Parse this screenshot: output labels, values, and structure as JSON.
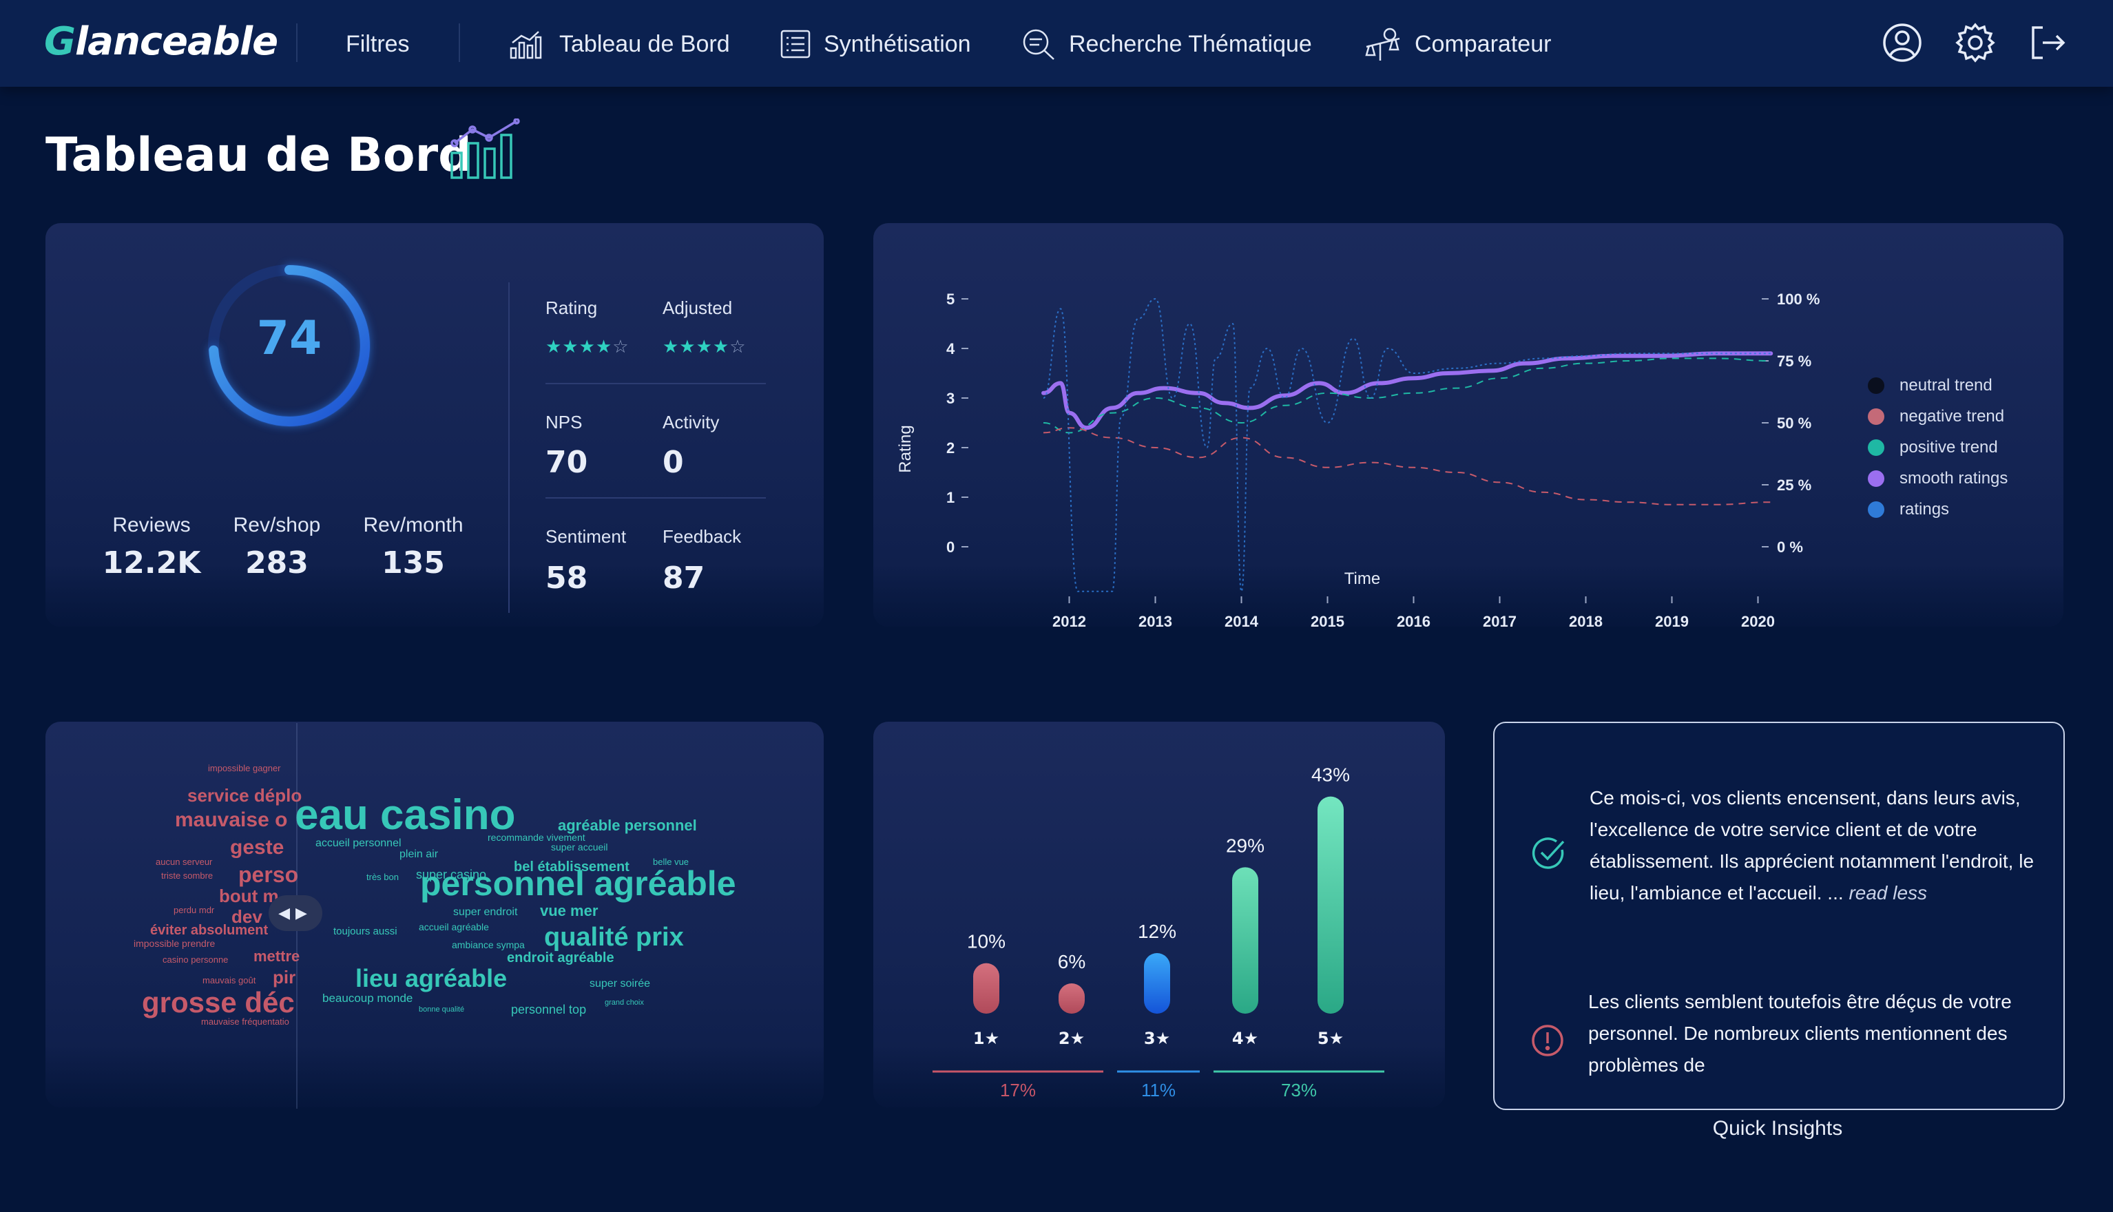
{
  "app": {
    "logo": "Glanceable",
    "nav": {
      "filters": "Filtres",
      "dashboard": "Tableau de Bord",
      "synthesis": "Synthétisation",
      "thematic": "Recherche Thématique",
      "comparator": "Comparateur"
    }
  },
  "page": {
    "title": "Tableau de Bord"
  },
  "kpis": {
    "score": "74",
    "reviews": {
      "label": "Reviews",
      "value": "12.2K"
    },
    "rev_shop": {
      "label": "Rev/shop",
      "value": "283"
    },
    "rev_month": {
      "label": "Rev/month",
      "value": "135"
    },
    "rating": {
      "label": "Rating",
      "stars_on": "★★★★",
      "stars_off": "☆",
      "rating_value": 4,
      "rating_max": 5
    },
    "adjusted": {
      "label": "Adjusted",
      "stars_on": "★★★★",
      "stars_off": "☆",
      "rating_value": 4,
      "rating_max": 5
    },
    "nps": {
      "label": "NPS",
      "value": "70"
    },
    "activity": {
      "label": "Activity",
      "value": "0"
    },
    "sentiment": {
      "label": "Sentiment",
      "value": "58"
    },
    "feedback": {
      "label": "Feedback",
      "value": "87"
    }
  },
  "chart_data": [
    {
      "type": "line",
      "title": "",
      "xlabel": "Time",
      "ylabel": "Rating",
      "x_ticks": [
        "2012",
        "2013",
        "2014",
        "2015",
        "2016",
        "2017",
        "2018",
        "2019",
        "2020"
      ],
      "y_ticks": [
        "0",
        "1",
        "2",
        "3",
        "4",
        "5"
      ],
      "y2_ticks": [
        "0 %",
        "25 %",
        "50 %",
        "75 %",
        "100 %"
      ],
      "ylim": [
        0,
        5
      ],
      "y2lim": [
        0,
        100
      ],
      "legend": [
        "neutral trend",
        "negative trend",
        "positive trend",
        "smooth ratings",
        "ratings"
      ],
      "series": [
        {
          "name": "smooth ratings",
          "color": "#9b6ff0",
          "x": [
            2011.7,
            2011.9,
            2012.0,
            2012.2,
            2012.5,
            2012.8,
            2013.1,
            2013.5,
            2013.8,
            2014.1,
            2014.5,
            2014.9,
            2015.2,
            2015.6,
            2016.0,
            2016.4,
            2016.9,
            2017.3,
            2017.8,
            2018.3,
            2018.9,
            2019.5,
            2020.0,
            2020.15
          ],
          "values": [
            3.1,
            3.3,
            2.7,
            2.4,
            2.8,
            3.1,
            3.2,
            3.1,
            2.9,
            2.8,
            3.05,
            3.3,
            3.1,
            3.3,
            3.4,
            3.5,
            3.55,
            3.7,
            3.8,
            3.85,
            3.85,
            3.9,
            3.9,
            3.9
          ]
        },
        {
          "name": "positive trend",
          "color": "#1fb8a4",
          "x": [
            2011.7,
            2012.0,
            2012.5,
            2013.0,
            2013.5,
            2014.0,
            2014.5,
            2015.0,
            2015.5,
            2016.0,
            2016.5,
            2017.0,
            2017.5,
            2018.0,
            2018.5,
            2019.0,
            2019.5,
            2020.15
          ],
          "values": [
            50,
            46,
            54,
            60,
            56,
            50,
            57,
            62,
            60,
            62,
            64,
            68,
            72,
            74,
            75,
            76,
            76,
            75
          ]
        },
        {
          "name": "negative trend",
          "color": "#c65a6a",
          "x": [
            2011.7,
            2012.0,
            2012.5,
            2013.0,
            2013.5,
            2014.0,
            2014.5,
            2015.0,
            2015.5,
            2016.0,
            2016.5,
            2017.0,
            2017.5,
            2018.0,
            2018.5,
            2019.0,
            2019.5,
            2020.15
          ],
          "values": [
            46,
            48,
            44,
            40,
            36,
            44,
            36,
            32,
            34,
            32,
            30,
            26,
            22,
            19,
            18,
            17,
            17,
            18
          ]
        },
        {
          "name": "ratings",
          "color": "#2f7bd8",
          "x": [
            2011.7,
            2011.9,
            2012.1,
            2012.2,
            2012.5,
            2012.6,
            2012.8,
            2013.0,
            2013.2,
            2013.4,
            2013.6,
            2013.7,
            2013.9,
            2014.0,
            2014.1,
            2014.3,
            2014.5,
            2014.7,
            2015.0,
            2015.3,
            2015.5,
            2015.7,
            2016.0,
            2016.5,
            2017.0,
            2017.5,
            2018.0,
            2018.5,
            2019.0,
            2019.5,
            2020.15
          ],
          "values": [
            3,
            4.8,
            -0.9,
            -0.9,
            -0.9,
            2.6,
            4.6,
            5,
            3,
            4.5,
            2,
            3.8,
            4.5,
            -0.9,
            3.2,
            4,
            3,
            4,
            2.5,
            4.2,
            3,
            4,
            3.5,
            3.6,
            3.7,
            3.8,
            3.85,
            3.9,
            3.9,
            3.9,
            3.9
          ]
        }
      ]
    },
    {
      "type": "bar",
      "title": "",
      "categories": [
        "1★",
        "2★",
        "3★",
        "4★",
        "5★"
      ],
      "values": [
        10,
        6,
        12,
        29,
        43
      ],
      "value_labels": [
        "10%",
        "6%",
        "12%",
        "29%",
        "43%"
      ],
      "ylim": [
        0,
        45
      ],
      "groups": [
        {
          "label": "17%",
          "color": "#c85668"
        },
        {
          "label": "11%",
          "color": "#2f8fe6"
        },
        {
          "label": "73%",
          "color": "#3fc8a8"
        }
      ]
    }
  ],
  "wordcloud": {
    "words": [
      {
        "text": "impossible gagner",
        "c": "#c65a6a"
      },
      {
        "text": "service déplo",
        "c": "#c65a6a"
      },
      {
        "text": "mauvaise o",
        "c": "#c65a6a"
      },
      {
        "text": "geste",
        "c": "#c65a6a"
      },
      {
        "text": "perso",
        "c": "#c65a6a"
      },
      {
        "text": "bout m",
        "c": "#c65a6a"
      },
      {
        "text": "dev",
        "c": "#c65a6a"
      },
      {
        "text": "éviter absolument",
        "c": "#c65a6a"
      },
      {
        "text": "impossible prendre",
        "c": "#c65a6a"
      },
      {
        "text": "mettre",
        "c": "#c65a6a"
      },
      {
        "text": "pir",
        "c": "#c65a6a"
      },
      {
        "text": "grosse déc",
        "c": "#c65a6a"
      },
      {
        "text": "mauvaise fréquentatio",
        "c": "#c65a6a"
      },
      {
        "text": "casino personne",
        "c": "#c65a6a"
      },
      {
        "text": "triste sombre",
        "c": "#c65a6a"
      },
      {
        "text": "aucun serveur",
        "c": "#c65a6a"
      },
      {
        "text": "mauvais goût",
        "c": "#c65a6a"
      },
      {
        "text": "perdu mdr",
        "c": "#c65a6a"
      },
      {
        "text": "eau casino",
        "c": "#37c8b8"
      },
      {
        "text": "personnel agréable",
        "c": "#37c8b8"
      },
      {
        "text": "qualité prix",
        "c": "#37c8b8"
      },
      {
        "text": "lieu agréable",
        "c": "#37c8b8"
      },
      {
        "text": "agréable personnel",
        "c": "#37c8b8"
      },
      {
        "text": "accueil personnel",
        "c": "#37c8b8"
      },
      {
        "text": "plein air",
        "c": "#37c8b8"
      },
      {
        "text": "super casino",
        "c": "#37c8b8"
      },
      {
        "text": "bel établissement",
        "c": "#37c8b8"
      },
      {
        "text": "super accueil",
        "c": "#37c8b8"
      },
      {
        "text": "vue mer",
        "c": "#37c8b8"
      },
      {
        "text": "super endroit",
        "c": "#37c8b8"
      },
      {
        "text": "toujours aussi",
        "c": "#37c8b8"
      },
      {
        "text": "accueil agréable",
        "c": "#37c8b8"
      },
      {
        "text": "endroit agréable",
        "c": "#37c8b8"
      },
      {
        "text": "beaucoup monde",
        "c": "#37c8b8"
      },
      {
        "text": "personnel top",
        "c": "#37c8b8"
      },
      {
        "text": "super soirée",
        "c": "#37c8b8"
      },
      {
        "text": "ambiance sympa",
        "c": "#37c8b8"
      },
      {
        "text": "très bon",
        "c": "#37c8b8"
      },
      {
        "text": "recommande vivement",
        "c": "#37c8b8"
      },
      {
        "text": "bonne qualité",
        "c": "#37c8b8"
      },
      {
        "text": "belle vue",
        "c": "#37c8b8"
      },
      {
        "text": "grand choix",
        "c": "#37c8b8"
      }
    ]
  },
  "insights": {
    "positive_text": "Ce mois-ci, vos clients encensent, dans leurs avis, l'excellence de votre service client et de votre établissement. Ils apprécient notamment l'endroit, le lieu, l'ambiance et l'accueil. ...",
    "positive_link": "read less",
    "negative_text": "Les clients semblent toutefois être déçus de votre personnel. De nombreux clients mentionnent des problèmes de",
    "caption": "Quick Insights"
  },
  "colors": {
    "background": "#041539",
    "topbar": "#0b2150",
    "accent_teal": "#37c8b8",
    "accent_blue": "#4aa8f0",
    "negative": "#c65a6a",
    "smooth": "#9b6ff0"
  }
}
